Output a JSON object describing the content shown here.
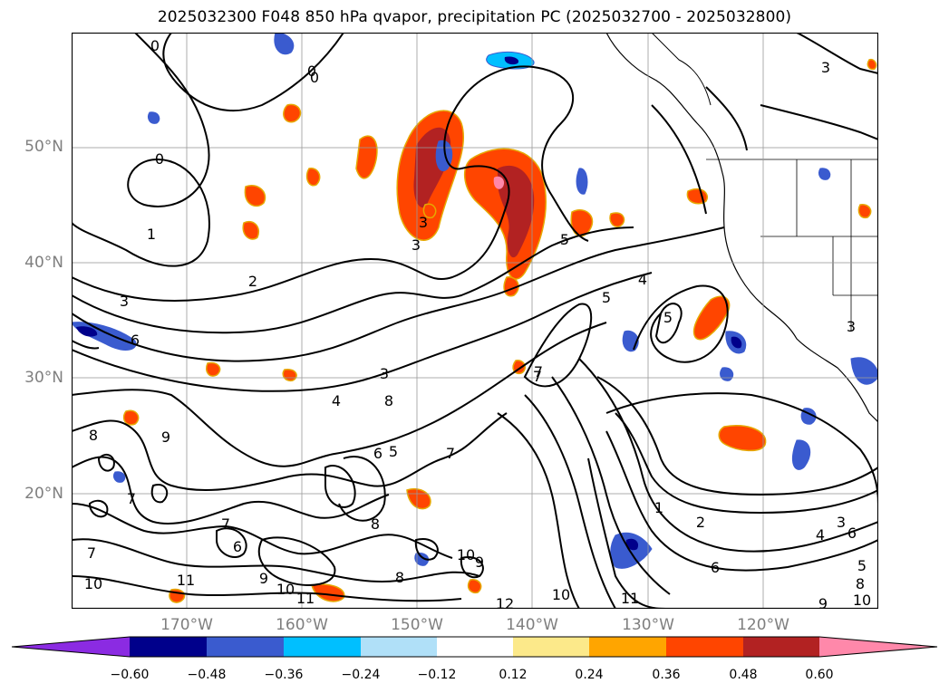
{
  "title": "2025032300 F048 850 hPa qvapor, precipitation PC (2025032700 - 2025032800)",
  "map": {
    "lat_labels": [
      "50°N",
      "40°N",
      "30°N",
      "20°N"
    ],
    "lon_labels": [
      "170°W",
      "160°W",
      "150°W",
      "140°W",
      "130°W",
      "120°W"
    ],
    "contour_labels": [
      "0",
      "0",
      "0",
      "1",
      "2",
      "3",
      "3",
      "3",
      "3",
      "3",
      "3",
      "4",
      "4",
      "5",
      "5",
      "5",
      "5",
      "6",
      "6",
      "6",
      "6",
      "7",
      "7",
      "7",
      "7",
      "7",
      "8",
      "8",
      "8",
      "8",
      "9",
      "9",
      "9",
      "10",
      "10",
      "10",
      "10",
      "11",
      "11",
      "11",
      "12",
      "1",
      "2",
      "3",
      "4",
      "5",
      "6",
      "7",
      "8",
      "9",
      "10",
      "0"
    ]
  },
  "colorbar": {
    "tick_labels": [
      "−0.60",
      "−0.48",
      "−0.36",
      "−0.24",
      "−0.12",
      "0.12",
      "0.24",
      "0.36",
      "0.48",
      "0.60"
    ],
    "colors": [
      "#8b2be2",
      "#00008b",
      "#3a5bcf",
      "#00bfff",
      "#b0e0f8",
      "#ffffff",
      "#fce98a",
      "#ffa500",
      "#ff4500",
      "#b22222",
      "#ff88aa"
    ]
  }
}
